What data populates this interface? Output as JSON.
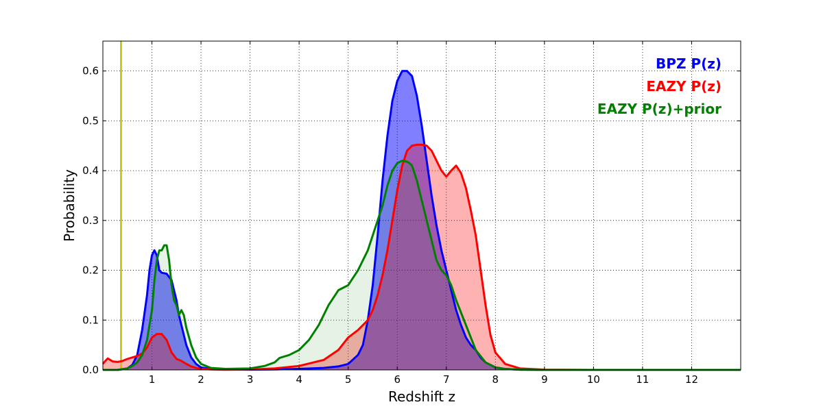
{
  "chart_data": {
    "type": "area",
    "title": "",
    "xlabel": "Redshift z",
    "ylabel": "Probability",
    "xlim": [
      0,
      13
    ],
    "ylim": [
      0,
      0.66
    ],
    "x_ticks": [
      1,
      2,
      3,
      4,
      5,
      6,
      7,
      8,
      9,
      10,
      11,
      12
    ],
    "x_tick_labels": [
      "1",
      "2",
      "3",
      "4",
      "5",
      "6",
      "7",
      "8",
      "9",
      "10",
      "11",
      "12"
    ],
    "y_ticks": [
      0.0,
      0.1,
      0.2,
      0.3,
      0.4,
      0.5,
      0.6
    ],
    "y_tick_labels": [
      "0.0",
      "0.1",
      "0.2",
      "0.3",
      "0.4",
      "0.5",
      "0.6"
    ],
    "grid": true,
    "legend_position": "top-right",
    "vertical_line": {
      "x": 0.37,
      "color": "#bfbf00"
    },
    "series": [
      {
        "name": "BPZ P(z)",
        "color": "#0000ff",
        "fill": "#0000ff",
        "fill_opacity": 0.5,
        "x": [
          0,
          0.3,
          0.5,
          0.6,
          0.7,
          0.8,
          0.9,
          0.95,
          1.0,
          1.05,
          1.1,
          1.15,
          1.2,
          1.3,
          1.4,
          1.5,
          1.55,
          1.6,
          1.7,
          1.8,
          1.9,
          2.0,
          2.2,
          2.5,
          3.0,
          3.5,
          4.0,
          4.5,
          4.8,
          5.0,
          5.2,
          5.3,
          5.4,
          5.5,
          5.6,
          5.7,
          5.8,
          5.9,
          6.0,
          6.1,
          6.2,
          6.3,
          6.4,
          6.5,
          6.6,
          6.7,
          6.8,
          6.9,
          7.0,
          7.1,
          7.2,
          7.3,
          7.4,
          7.5,
          7.6,
          7.7,
          7.8,
          8.0,
          8.2,
          8.5,
          9.0,
          13.0
        ],
        "values": [
          0,
          0,
          0.003,
          0.01,
          0.03,
          0.08,
          0.15,
          0.2,
          0.23,
          0.24,
          0.23,
          0.2,
          0.195,
          0.193,
          0.18,
          0.14,
          0.11,
          0.09,
          0.05,
          0.025,
          0.012,
          0.005,
          0.002,
          0.001,
          0.0005,
          0.001,
          0.002,
          0.004,
          0.007,
          0.012,
          0.03,
          0.05,
          0.1,
          0.17,
          0.27,
          0.38,
          0.47,
          0.54,
          0.58,
          0.6,
          0.6,
          0.59,
          0.55,
          0.49,
          0.42,
          0.35,
          0.29,
          0.24,
          0.2,
          0.16,
          0.12,
          0.09,
          0.065,
          0.05,
          0.04,
          0.025,
          0.015,
          0.005,
          0.002,
          0.0005,
          0,
          0
        ]
      },
      {
        "name": "EAZY P(z)",
        "color": "#ff0000",
        "fill": "#ff0000",
        "fill_opacity": 0.3,
        "x": [
          0,
          0.05,
          0.1,
          0.2,
          0.3,
          0.4,
          0.5,
          0.6,
          0.7,
          0.8,
          0.9,
          1.0,
          1.1,
          1.2,
          1.3,
          1.4,
          1.5,
          1.6,
          1.7,
          1.8,
          1.9,
          2.0,
          2.2,
          2.5,
          3.0,
          3.5,
          4.0,
          4.5,
          4.8,
          5.0,
          5.2,
          5.4,
          5.5,
          5.6,
          5.7,
          5.8,
          5.9,
          6.0,
          6.1,
          6.2,
          6.3,
          6.4,
          6.5,
          6.6,
          6.7,
          6.8,
          6.9,
          7.0,
          7.1,
          7.2,
          7.3,
          7.4,
          7.5,
          7.6,
          7.7,
          7.8,
          7.9,
          8.0,
          8.2,
          8.5,
          9.0,
          10.0,
          13.0
        ],
        "values": [
          0.012,
          0.018,
          0.023,
          0.017,
          0.016,
          0.018,
          0.022,
          0.025,
          0.028,
          0.033,
          0.045,
          0.065,
          0.072,
          0.072,
          0.06,
          0.035,
          0.022,
          0.018,
          0.012,
          0.007,
          0.004,
          0.002,
          0.001,
          0.0005,
          0.001,
          0.003,
          0.008,
          0.02,
          0.04,
          0.065,
          0.08,
          0.1,
          0.12,
          0.15,
          0.19,
          0.24,
          0.3,
          0.36,
          0.41,
          0.44,
          0.45,
          0.452,
          0.452,
          0.45,
          0.44,
          0.42,
          0.4,
          0.388,
          0.4,
          0.41,
          0.395,
          0.365,
          0.32,
          0.27,
          0.2,
          0.13,
          0.07,
          0.035,
          0.012,
          0.003,
          0.0005,
          0,
          0
        ]
      },
      {
        "name": "EAZY P(z)+prior",
        "color": "#008000",
        "fill": "#008000",
        "fill_opacity": 0.1,
        "x": [
          0,
          0.3,
          0.5,
          0.6,
          0.7,
          0.8,
          0.9,
          1.0,
          1.05,
          1.1,
          1.15,
          1.2,
          1.25,
          1.3,
          1.35,
          1.4,
          1.45,
          1.5,
          1.55,
          1.6,
          1.65,
          1.7,
          1.8,
          1.9,
          2.0,
          2.2,
          2.5,
          3.0,
          3.3,
          3.5,
          3.6,
          3.8,
          4.0,
          4.2,
          4.4,
          4.6,
          4.8,
          5.0,
          5.2,
          5.4,
          5.6,
          5.7,
          5.8,
          5.9,
          6.0,
          6.1,
          6.2,
          6.25,
          6.3,
          6.4,
          6.5,
          6.6,
          6.7,
          6.8,
          6.9,
          7.0,
          7.1,
          7.2,
          7.4,
          7.6,
          7.8,
          8.0,
          8.2,
          8.5,
          9.0,
          13.0
        ],
        "values": [
          0,
          0,
          0.003,
          0.008,
          0.015,
          0.03,
          0.06,
          0.12,
          0.18,
          0.22,
          0.24,
          0.24,
          0.25,
          0.25,
          0.22,
          0.17,
          0.14,
          0.13,
          0.11,
          0.12,
          0.11,
          0.085,
          0.05,
          0.025,
          0.012,
          0.004,
          0.002,
          0.003,
          0.008,
          0.015,
          0.024,
          0.03,
          0.04,
          0.06,
          0.09,
          0.13,
          0.16,
          0.17,
          0.2,
          0.24,
          0.3,
          0.33,
          0.37,
          0.4,
          0.415,
          0.42,
          0.418,
          0.415,
          0.41,
          0.38,
          0.34,
          0.3,
          0.26,
          0.22,
          0.2,
          0.19,
          0.17,
          0.14,
          0.09,
          0.04,
          0.015,
          0.005,
          0.002,
          0.0005,
          0,
          0
        ]
      }
    ]
  }
}
